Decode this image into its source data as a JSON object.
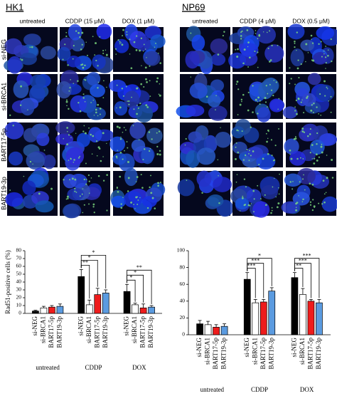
{
  "panels": [
    {
      "title": "HK1",
      "columns": [
        "untreated",
        "CDDP (15 μM)",
        "DOX (1 μM)"
      ],
      "rows": [
        "si-NEG",
        "si-BRCA1",
        "BART17-5p",
        "BART19-3p"
      ]
    },
    {
      "title": "NP69",
      "columns": [
        "untreated",
        "CDDP (4 μM)",
        "DOX (0.5 μM)"
      ]
    }
  ],
  "chart_data": [
    {
      "type": "bar",
      "y_label": "Rad51-positive cells (%)",
      "categories": [
        "untreated",
        "CDDP",
        "DOX"
      ],
      "ylim": [
        0,
        80
      ],
      "yticks": [
        0,
        10,
        20,
        30,
        40,
        50,
        60,
        70,
        80
      ],
      "series": [
        {
          "name": "si-NEG",
          "color": "#000000",
          "values": [
            3,
            47,
            28
          ],
          "errors": [
            1,
            9,
            9
          ]
        },
        {
          "name": "si-BRCA1",
          "color": "#ffffff",
          "values": [
            7,
            11,
            11
          ],
          "errors": [
            2,
            6,
            2
          ]
        },
        {
          "name": "BART17-5p",
          "color": "#ee1c1c",
          "values": [
            8,
            24,
            7
          ],
          "errors": [
            2,
            8,
            5
          ]
        },
        {
          "name": "BART19-3p",
          "color": "#5b9be0",
          "values": [
            9,
            26,
            8
          ],
          "errors": [
            3,
            4,
            2
          ]
        }
      ],
      "significance": [
        [
          null,
          null,
          null
        ],
        [
          "**",
          "*",
          "*"
        ],
        [
          "*",
          "*",
          "**"
        ]
      ]
    },
    {
      "type": "bar",
      "categories": [
        "untreated",
        "CDDP",
        "DOX"
      ],
      "ylim": [
        0,
        100
      ],
      "yticks": [
        0,
        20,
        40,
        60,
        80,
        100
      ],
      "series": [
        {
          "name": "si-NEG",
          "color": "#000000",
          "values": [
            13,
            66,
            68
          ],
          "errors": [
            4,
            8,
            6
          ]
        },
        {
          "name": "si-BRCA1",
          "color": "#ffffff",
          "values": [
            12,
            38,
            48
          ],
          "errors": [
            4,
            4,
            7
          ]
        },
        {
          "name": "BART17-5p",
          "color": "#ee1c1c",
          "values": [
            9,
            39,
            40
          ],
          "errors": [
            3,
            3,
            2
          ]
        },
        {
          "name": "BART19-3p",
          "color": "#5b9be0",
          "values": [
            10,
            52,
            38
          ],
          "errors": [
            3,
            4,
            4
          ]
        }
      ],
      "significance": [
        [
          null,
          null,
          null
        ],
        [
          "***",
          "***",
          "*"
        ],
        [
          "**",
          "***",
          "***"
        ]
      ]
    }
  ]
}
